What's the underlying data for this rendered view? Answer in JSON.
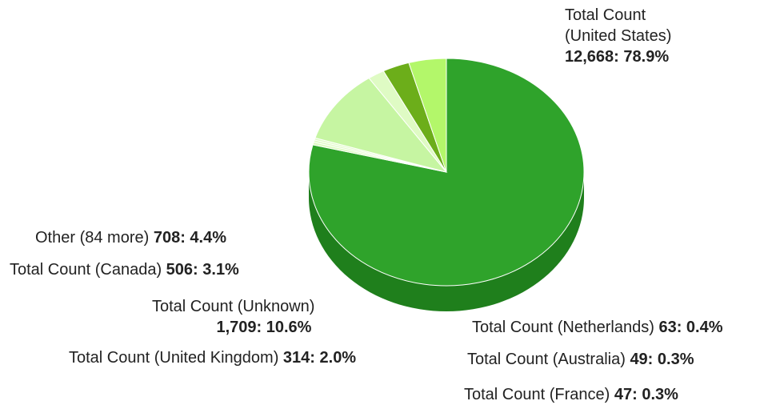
{
  "colors": {
    "top": "#2fa32b",
    "side": "#1f7f1c",
    "others": "#c6f5a2",
    "canada": "#6cae1a",
    "other": "#b3f76a",
    "small": "#dffbc4",
    "text": "#222222"
  },
  "chart_data": {
    "type": "pie",
    "title": "",
    "slices": [
      {
        "name": "Total Count (United States)",
        "value": 12668,
        "percent": "78.9%",
        "value_label": "12,668"
      },
      {
        "name": "Total Count (Netherlands)",
        "value": 63,
        "percent": "0.4%",
        "value_label": "63"
      },
      {
        "name": "Total Count (Australia)",
        "value": 49,
        "percent": "0.3%",
        "value_label": "49"
      },
      {
        "name": "Total Count (France)",
        "value": 47,
        "percent": "0.3%",
        "value_label": "47"
      },
      {
        "name": "Total Count (Unknown)",
        "value": 1709,
        "percent": "10.6%",
        "value_label": "1,709"
      },
      {
        "name": "Total Count (United Kingdom)",
        "value": 314,
        "percent": "2.0%",
        "value_label": "314"
      },
      {
        "name": "Total Count (Canada)",
        "value": 506,
        "percent": "3.1%",
        "value_label": "506"
      },
      {
        "name": "Other (84 more)",
        "value": 708,
        "percent": "4.4%",
        "value_label": "708"
      }
    ]
  },
  "labels": {
    "us_line1": "Total Count",
    "us_line2": "(United States)",
    "us_value": "12,668: 78.9%",
    "other_name": "Other (84 more)",
    "other_value": "708: 4.4%",
    "canada_name": "Total Count (Canada)",
    "canada_value": "506: 3.1%",
    "unknown_name": "Total Count (Unknown)",
    "unknown_value": "1,709: 10.6%",
    "uk_name": "Total Count (United Kingdom)",
    "uk_value": "314: 2.0%",
    "netherlands_name": "Total Count (Netherlands)",
    "netherlands_value": "63: 0.4%",
    "australia_name": "Total Count (Australia)",
    "australia_value": "49: 0.3%",
    "france_name": "Total Count (France)",
    "france_value": "47: 0.3%"
  }
}
